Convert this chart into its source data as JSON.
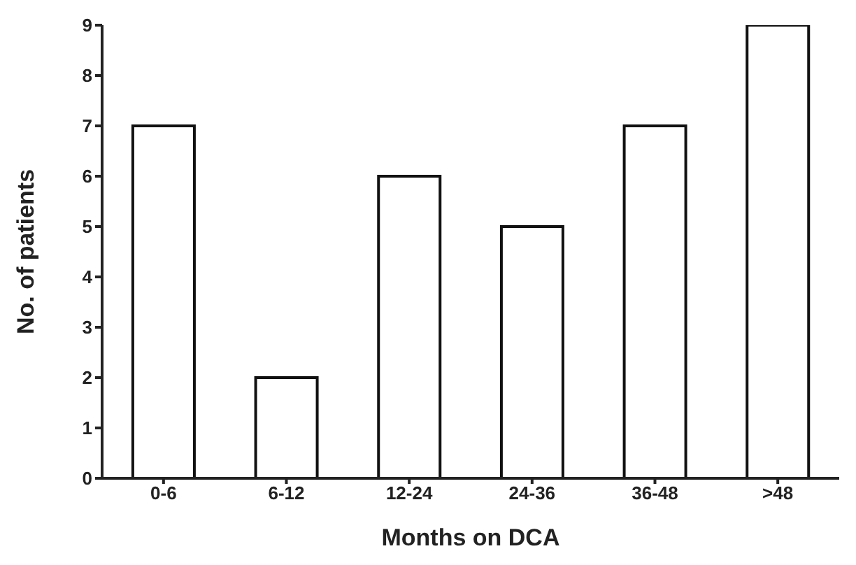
{
  "chart_data": {
    "type": "bar",
    "xlabel": "Months on  DCA",
    "ylabel": "No. of patients",
    "categories": [
      "0-6",
      "6-12",
      "12-24",
      "24-36",
      "36-48",
      ">48"
    ],
    "values": [
      7,
      2,
      6,
      5,
      7,
      9
    ],
    "color": "#ffffff",
    "ylim": [
      0,
      9
    ],
    "yticks": [
      0,
      1,
      2,
      3,
      4,
      5,
      6,
      7,
      8,
      9
    ],
    "grid": false,
    "legend": false
  }
}
